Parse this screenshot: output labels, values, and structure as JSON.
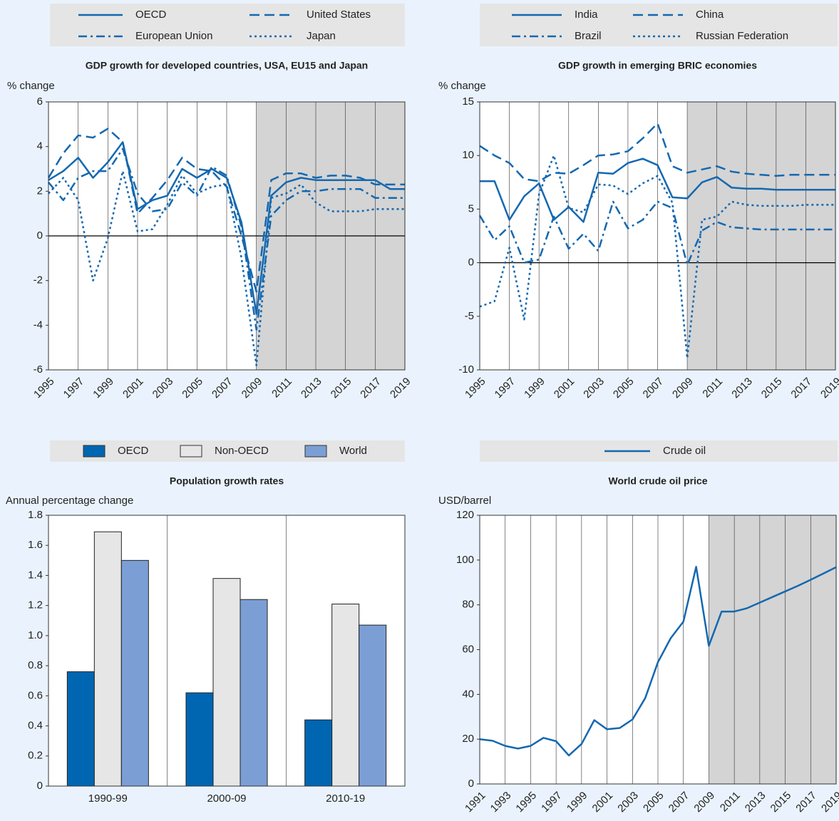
{
  "chart_data": [
    {
      "type": "line",
      "title": "GDP growth for developed countries, USA, EU15 and Japan",
      "y_label": "% change",
      "x": [
        1995,
        1996,
        1997,
        1998,
        1999,
        2000,
        2001,
        2002,
        2003,
        2004,
        2005,
        2006,
        2007,
        2008,
        2009,
        2010,
        2011,
        2012,
        2013,
        2014,
        2015,
        2016,
        2017,
        2018,
        2019
      ],
      "xlim": [
        1995,
        2019
      ],
      "xticks": [
        1995,
        1997,
        1999,
        2001,
        2003,
        2005,
        2007,
        2009,
        2011,
        2013,
        2015,
        2017,
        2019
      ],
      "ylim": [
        -6,
        6
      ],
      "yticks": [
        -6,
        -4,
        -2,
        0,
        2,
        4,
        6
      ],
      "grid": "x",
      "shade_start": 2009,
      "series": [
        {
          "name": "OECD",
          "color": "#1468b0",
          "style": "solid",
          "values": [
            2.5,
            2.9,
            3.5,
            2.6,
            3.3,
            4.2,
            1.2,
            1.6,
            1.8,
            3.0,
            2.6,
            3.0,
            2.6,
            0.6,
            -3.5,
            1.8,
            2.4,
            2.6,
            2.5,
            2.5,
            2.5,
            2.5,
            2.5,
            2.1,
            2.1
          ]
        },
        {
          "name": "United States",
          "color": "#1468b0",
          "style": "dashed",
          "values": [
            2.6,
            3.7,
            4.5,
            4.4,
            4.8,
            4.2,
            1.0,
            1.7,
            2.5,
            3.5,
            3.0,
            2.9,
            2.2,
            0.0,
            -2.5,
            2.5,
            2.8,
            2.8,
            2.6,
            2.7,
            2.7,
            2.6,
            2.3,
            2.3,
            2.3
          ]
        },
        {
          "name": "European Union",
          "color": "#1468b0",
          "style": "dashdot",
          "values": [
            2.4,
            1.6,
            2.6,
            2.9,
            2.9,
            3.9,
            1.9,
            1.1,
            1.2,
            2.4,
            1.8,
            3.1,
            2.7,
            0.4,
            -4.2,
            0.9,
            1.6,
            2.0,
            2.0,
            2.1,
            2.1,
            2.1,
            1.7,
            1.7,
            1.7
          ]
        },
        {
          "name": "Japan",
          "color": "#1468b0",
          "style": "dotted",
          "values": [
            1.9,
            2.6,
            1.6,
            -2.0,
            -0.1,
            2.9,
            0.2,
            0.3,
            1.4,
            2.7,
            1.9,
            2.2,
            2.3,
            -1.0,
            -5.8,
            1.7,
            1.9,
            2.3,
            1.5,
            1.1,
            1.1,
            1.1,
            1.2,
            1.2,
            1.2
          ]
        }
      ]
    },
    {
      "type": "line",
      "title": "GDP growth in emerging BRIC economies",
      "y_label": "% change",
      "x": [
        1995,
        1996,
        1997,
        1998,
        1999,
        2000,
        2001,
        2002,
        2003,
        2004,
        2005,
        2006,
        2007,
        2008,
        2009,
        2010,
        2011,
        2012,
        2013,
        2014,
        2015,
        2016,
        2017,
        2018,
        2019
      ],
      "xlim": [
        1995,
        2019
      ],
      "xticks": [
        1995,
        1997,
        1999,
        2001,
        2003,
        2005,
        2007,
        2009,
        2011,
        2013,
        2015,
        2017,
        2019
      ],
      "ylim": [
        -10,
        15
      ],
      "yticks": [
        -10,
        -5,
        0,
        5,
        10,
        15
      ],
      "grid": "x",
      "shade_start": 2009,
      "series": [
        {
          "name": "India",
          "color": "#1468b0",
          "style": "solid",
          "values": [
            7.6,
            7.6,
            4.0,
            6.2,
            7.4,
            4.0,
            5.2,
            3.8,
            8.4,
            8.3,
            9.3,
            9.7,
            9.1,
            6.1,
            6.0,
            7.5,
            8.0,
            7.0,
            6.9,
            6.9,
            6.8,
            6.8,
            6.8,
            6.8,
            6.8
          ]
        },
        {
          "name": "China",
          "color": "#1468b0",
          "style": "dashed",
          "values": [
            10.9,
            10.0,
            9.3,
            7.8,
            7.6,
            8.4,
            8.3,
            9.1,
            10.0,
            10.1,
            10.4,
            11.6,
            13.0,
            9.0,
            8.4,
            8.7,
            9.0,
            8.5,
            8.3,
            8.2,
            8.1,
            8.2,
            8.2,
            8.2,
            8.2
          ]
        },
        {
          "name": "Brazil",
          "color": "#1468b0",
          "style": "dashdot",
          "values": [
            4.4,
            2.1,
            3.4,
            0.0,
            0.3,
            4.3,
            1.3,
            2.7,
            1.1,
            5.7,
            3.2,
            4.0,
            5.7,
            5.1,
            -0.2,
            3.0,
            3.8,
            3.3,
            3.2,
            3.1,
            3.1,
            3.1,
            3.1,
            3.1,
            3.1
          ]
        },
        {
          "name": "Russian Federation",
          "color": "#1468b0",
          "style": "dotted",
          "values": [
            -4.1,
            -3.6,
            1.4,
            -5.3,
            6.4,
            10.0,
            5.1,
            4.7,
            7.3,
            7.2,
            6.4,
            7.4,
            8.1,
            5.6,
            -8.9,
            4.0,
            4.3,
            5.7,
            5.4,
            5.3,
            5.3,
            5.3,
            5.4,
            5.4,
            5.4
          ]
        }
      ]
    },
    {
      "type": "bar",
      "title": "Population growth rates",
      "y_label": "Annual percentage change",
      "categories": [
        "1990-99",
        "2000-09",
        "2010-19"
      ],
      "ylim": [
        0,
        1.8
      ],
      "yticks": [
        0,
        0.2,
        0.4,
        0.6,
        0.8,
        {
          "value": 1,
          "label": "1.0"
        },
        1.2,
        1.4,
        1.6,
        1.8
      ],
      "series": [
        {
          "name": "OECD",
          "color": "#0066b2",
          "values": [
            0.76,
            0.62,
            0.44
          ]
        },
        {
          "name": "Non-OECD",
          "color": "#e6e6e6",
          "values": [
            1.69,
            1.38,
            1.21
          ]
        },
        {
          "name": "World",
          "color": "#7b9fd5",
          "values": [
            1.5,
            1.24,
            1.07
          ]
        }
      ]
    },
    {
      "type": "line",
      "title": "World crude oil price",
      "y_label": "USD/barrel",
      "x": [
        1991,
        1992,
        1993,
        1994,
        1995,
        1996,
        1997,
        1998,
        1999,
        2000,
        2001,
        2002,
        2003,
        2004,
        2005,
        2006,
        2007,
        2008,
        2009,
        2010,
        2011,
        2012,
        2013,
        2014,
        2015,
        2016,
        2017,
        2018,
        2019
      ],
      "xlim": [
        1991,
        2019
      ],
      "xticks": [
        1991,
        1993,
        1995,
        1997,
        1999,
        2001,
        2003,
        2005,
        2007,
        2009,
        2011,
        2013,
        2015,
        2017,
        2019
      ],
      "ylim": [
        0,
        120
      ],
      "yticks": [
        0,
        20,
        40,
        60,
        80,
        100,
        120
      ],
      "grid": "x",
      "shade_start": 2009,
      "series": [
        {
          "name": "Crude oil",
          "color": "#1468b0",
          "style": "solid",
          "values": [
            20,
            19.3,
            17,
            15.8,
            17,
            20.6,
            19.1,
            12.7,
            17.9,
            28.5,
            24.4,
            25,
            28.8,
            38.3,
            54.4,
            65.1,
            72.5,
            97,
            61.7,
            77,
            77,
            78.5,
            81,
            83.5,
            86,
            88.5,
            91.2,
            94,
            96.8
          ]
        }
      ]
    }
  ]
}
